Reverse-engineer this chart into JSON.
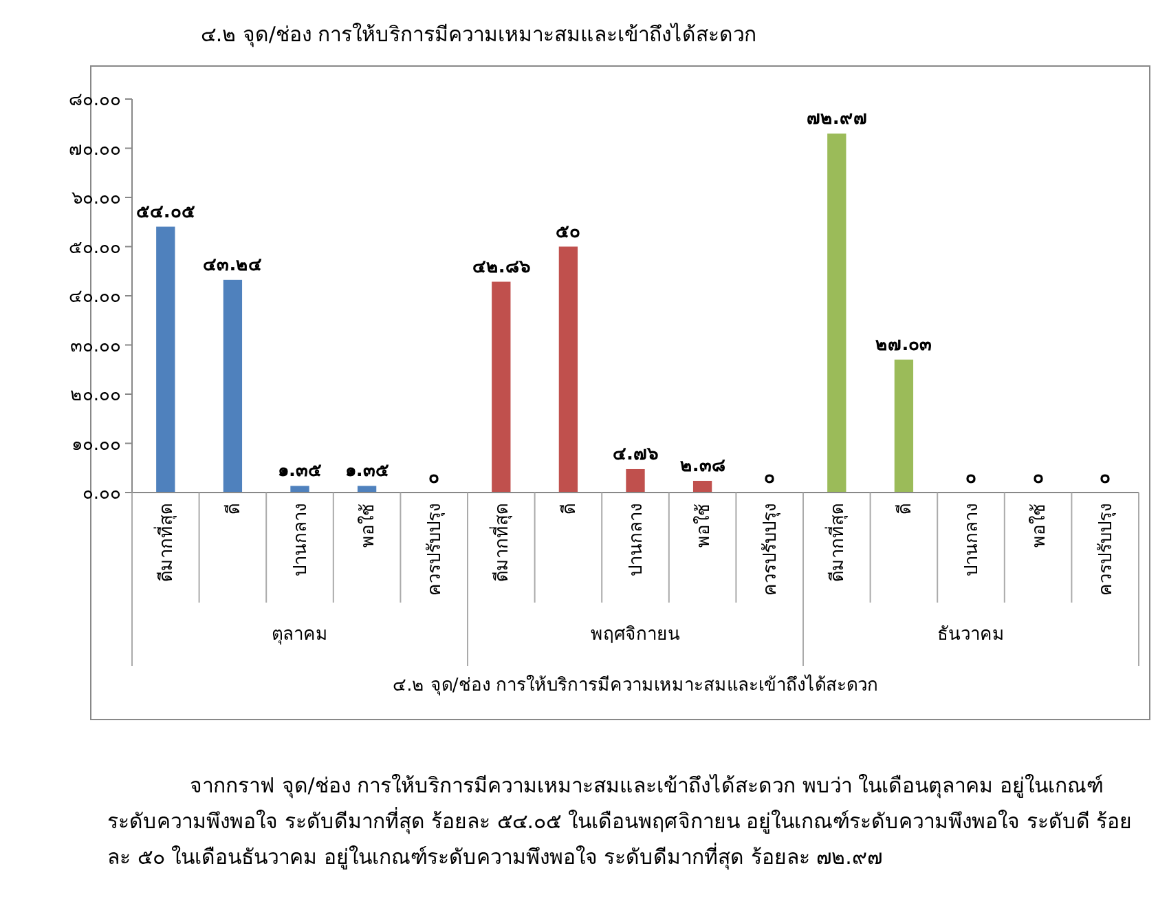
{
  "chart_data": {
    "type": "bar",
    "title": "๔.๒ จุด/ช่อง การให้บริการมีความเหมาะสมและเข้าถึงได้สะดวก",
    "xlabel": "๔.๒ จุด/ช่อง การให้บริการมีความเหมาะสมและเข้าถึงได้สะดวก",
    "categories": [
      "ดีมากที่สุด",
      "ดี",
      "ปานกลาง",
      "พอใช้",
      "ควรปรับปรุง",
      "ดีมากที่สุด",
      "ดี",
      "ปานกลาง",
      "พอใช้",
      "ควรปรับปรุง",
      "ดีมากที่สุด",
      "ดี",
      "ปานกลาง",
      "พอใช้",
      "ควรปรับปรุง"
    ],
    "values": [
      54.05,
      43.24,
      1.35,
      1.35,
      0,
      42.86,
      50,
      4.76,
      2.38,
      0,
      72.97,
      27.03,
      0,
      0,
      0
    ],
    "value_labels": [
      "๕๔.๐๕",
      "๔๓.๒๔",
      "๑.๓๕",
      "๑.๓๕",
      "๐",
      "๔๒.๘๖",
      "๕๐",
      "๔.๗๖",
      "๒.๓๘",
      "๐",
      "๗๒.๙๗",
      "๒๗.๐๓",
      "๐",
      "๐",
      "๐"
    ],
    "colors": [
      "#4f81bd",
      "#4f81bd",
      "#4f81bd",
      "#4f81bd",
      "#4f81bd",
      "#c0504d",
      "#c0504d",
      "#c0504d",
      "#c0504d",
      "#c0504d",
      "#9bbb59",
      "#9bbb59",
      "#9bbb59",
      "#9bbb59",
      "#9bbb59"
    ],
    "ylim": [
      0,
      80
    ],
    "yticks": [
      {
        "value": 0,
        "label": "๐.๐๐"
      },
      {
        "value": 10,
        "label": "๑๐.๐๐"
      },
      {
        "value": 20,
        "label": "๒๐.๐๐"
      },
      {
        "value": 30,
        "label": "๓๐.๐๐"
      },
      {
        "value": 40,
        "label": "๔๐.๐๐"
      },
      {
        "value": 50,
        "label": "๕๐.๐๐"
      },
      {
        "value": 60,
        "label": "๖๐.๐๐"
      },
      {
        "value": 70,
        "label": "๗๐.๐๐"
      },
      {
        "value": 80,
        "label": "๘๐.๐๐"
      }
    ],
    "annotations": [
      "ตุลาคม",
      "พฤศจิกายน",
      "ธันวาคม",
      "จากกราฟ จุด/ช่อง การให้บริการมีความเหมาะสมและเข้าถึงได้สะดวก พบว่า ในเดือนตุลาคม อยู่ในเกณฑ์ระดับความพึงพอใจ ระดับดีมากที่สุด ร้อยละ ๕๔.๐๕ ในเดือนพฤศจิกายน อยู่ในเกณฑ์ระดับความพึงพอใจ ระดับดี ร้อยละ ๕๐ ในเดือนธันวาคม อยู่ในเกณฑ์ระดับความพึงพอใจ ระดับดีมากที่สุด ร้อยละ ๗๒.๙๗"
    ],
    "grid": false
  }
}
